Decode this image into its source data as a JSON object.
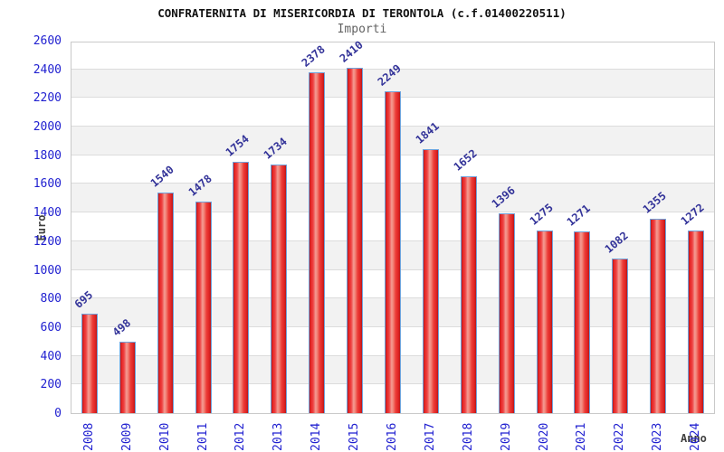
{
  "title": "CONFRATERNITA DI MISERICORDIA DI TERONTOLA (c.f.01400220511)",
  "subtitle": "Importi",
  "chart_data": {
    "type": "bar",
    "categories": [
      "2008",
      "2009",
      "2010",
      "2011",
      "2012",
      "2013",
      "2014",
      "2015",
      "2016",
      "2017",
      "2018",
      "2019",
      "2020",
      "2021",
      "2022",
      "2023",
      "2024"
    ],
    "values": [
      695,
      498,
      1540,
      1478,
      1754,
      1734,
      2378,
      2410,
      2249,
      1841,
      1652,
      1396,
      1275,
      1271,
      1082,
      1355,
      1272
    ],
    "title": "CONFRATERNITA DI MISERICORDIA DI TERONTOLA (c.f.01400220511)",
    "subtitle": "Importi",
    "xlabel": "Anno",
    "ylabel": "Euro",
    "ylim": [
      0,
      2600
    ],
    "ytick_step": 200,
    "legend": "none",
    "grid": "horizontal gridlines with alternating shaded bands",
    "value_labels": "shown above bars, rotated",
    "colors": {
      "bar_fill": "#e82828",
      "bar_highlight": "#f49b93",
      "bar_border": "#6fa3dc",
      "tick_label": "#2020d0",
      "value_label": "#333399",
      "band_shade": "#f2f2f2",
      "gridline": "#dcdcdc",
      "title_color": "#111111",
      "subtitle_color": "#636363",
      "axis_label_color": "#404040"
    }
  }
}
